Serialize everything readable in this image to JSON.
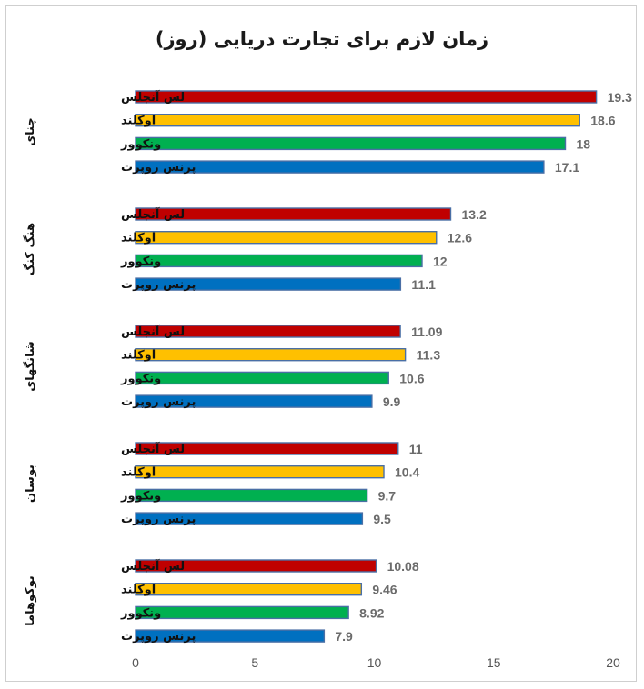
{
  "chart_data": {
    "type": "bar",
    "orientation": "horizontal",
    "title": "زمان لازم برای تجارت دریایی (روز)",
    "xlim": [
      0,
      20
    ],
    "x_ticks": [
      0,
      5,
      10,
      15,
      20
    ],
    "grid": false,
    "legend": "none",
    "series_colors": {
      "لس آنجلس": "#c00000",
      "اوکلند": "#ffc000",
      "ونکوور": "#00b050",
      "پرنس روپرت": "#0070c0"
    },
    "groups": [
      {
        "name": "چنای",
        "bars": [
          {
            "label": "لس آنجلس",
            "value": 19.3,
            "display": "19.3"
          },
          {
            "label": "اوکلند",
            "value": 18.6,
            "display": "18.6"
          },
          {
            "label": "ونکوور",
            "value": 18,
            "display": "18"
          },
          {
            "label": "پرنس روپرت",
            "value": 17.1,
            "display": "17.1"
          }
        ]
      },
      {
        "name": "هنگ کنگ",
        "bars": [
          {
            "label": "لس آنجلس",
            "value": 13.2,
            "display": "13.2"
          },
          {
            "label": "اوکلند",
            "value": 12.6,
            "display": "12.6"
          },
          {
            "label": "ونکوور",
            "value": 12,
            "display": "12"
          },
          {
            "label": "پرنس روپرت",
            "value": 11.1,
            "display": "11.1"
          }
        ]
      },
      {
        "name": "شانگهای",
        "bars": [
          {
            "label": "لس آنجلس",
            "value": 11.09,
            "display": "11.09"
          },
          {
            "label": "اوکلند",
            "value": 11.3,
            "display": "11.3"
          },
          {
            "label": "ونکوور",
            "value": 10.6,
            "display": "10.6"
          },
          {
            "label": "پرنس روپرت",
            "value": 9.9,
            "display": "9.9"
          }
        ]
      },
      {
        "name": "بوسان",
        "bars": [
          {
            "label": "لس آنجلس",
            "value": 11,
            "display": "11"
          },
          {
            "label": "اوکلند",
            "value": 10.4,
            "display": "10.4"
          },
          {
            "label": "ونکوور",
            "value": 9.7,
            "display": "9.7"
          },
          {
            "label": "پرنس روپرت",
            "value": 9.5,
            "display": "9.5"
          }
        ]
      },
      {
        "name": "یوکوهاما",
        "bars": [
          {
            "label": "لس آنجلس",
            "value": 10.08,
            "display": "10.08"
          },
          {
            "label": "اوکلند",
            "value": 9.46,
            "display": "9.46"
          },
          {
            "label": "ونکوور",
            "value": 8.92,
            "display": "8.92"
          },
          {
            "label": "پرنس روپرت",
            "value": 7.9,
            "display": "7.9"
          }
        ]
      }
    ]
  }
}
